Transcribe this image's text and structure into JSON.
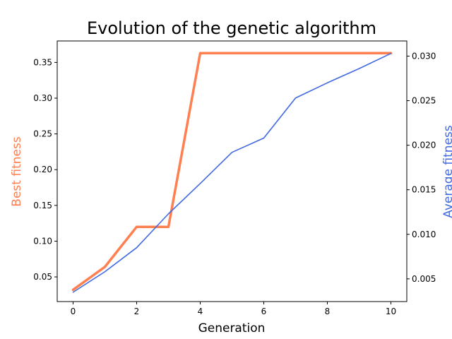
{
  "chart_data": {
    "type": "line",
    "title": "Evolution of the genetic algorithm",
    "xlabel": "Generation",
    "ylabel_left": "Best fitness",
    "ylabel_right": "Average fitness",
    "x": [
      0,
      1,
      2,
      3,
      4,
      5,
      6,
      7,
      8,
      9,
      10
    ],
    "xlim": [
      -0.5,
      10.5
    ],
    "xticks": [
      0,
      2,
      4,
      6,
      8,
      10
    ],
    "ylim_left": [
      0.0155,
      0.38
    ],
    "yticks_left": [
      "0.05",
      "0.10",
      "0.15",
      "0.20",
      "0.25",
      "0.30",
      "0.35"
    ],
    "ylim_right": [
      0.00245,
      0.0317
    ],
    "yticks_right": [
      "0.005",
      "0.010",
      "0.015",
      "0.020",
      "0.025",
      "0.030"
    ],
    "grid": false,
    "series": [
      {
        "name": "Best fitness",
        "axis": "left",
        "color": "#ff7f50",
        "values": [
          0.032,
          0.064,
          0.12,
          0.12,
          0.363,
          0.363,
          0.363,
          0.363,
          0.363,
          0.363,
          0.363
        ]
      },
      {
        "name": "Average fitness",
        "axis": "right",
        "color": "#4169e1",
        "values": [
          0.0035,
          0.0058,
          0.0085,
          0.0123,
          0.0157,
          0.0192,
          0.0208,
          0.0253,
          0.027,
          0.0286,
          0.0303
        ]
      }
    ]
  }
}
